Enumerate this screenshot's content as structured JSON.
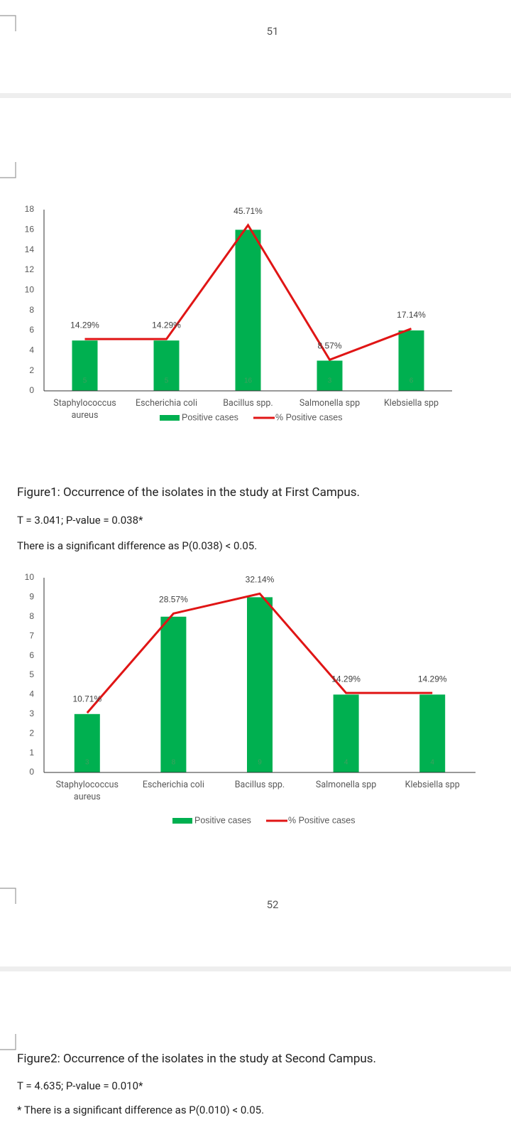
{
  "page_numbers": [
    "51",
    "52"
  ],
  "chart_data": [
    {
      "type": "bar",
      "categories": [
        "Staphylococcus aureus",
        "Escherichia coli",
        "Bacillus spp.",
        "Salmonella spp",
        "Klebsiella spp"
      ],
      "series": [
        {
          "name": "Positive cases",
          "color": "#00b050",
          "values": [
            5,
            5,
            16,
            3,
            6
          ]
        },
        {
          "name": "% Positive cases",
          "color": "#e01515",
          "type": "line",
          "axis": "y2",
          "values": [
            14.29,
            14.29,
            45.71,
            8.57,
            17.14
          ],
          "value_labels": [
            "14.29%",
            "14.29%",
            "45.71%",
            "8.57%",
            "17.14%"
          ]
        }
      ],
      "ylim": [
        0,
        18
      ],
      "yticks": [
        0,
        2,
        4,
        6,
        8,
        10,
        12,
        14,
        16,
        18
      ],
      "y2lim": [
        0,
        50
      ],
      "grid": false,
      "legend": "bottom"
    },
    {
      "type": "bar",
      "categories": [
        "Staphylococcus aureus",
        "Escherichia coli",
        "Bacillus spp.",
        "Salmonella spp",
        "Klebsiella spp"
      ],
      "series": [
        {
          "name": "Positive cases",
          "color": "#00b050",
          "values": [
            3,
            8,
            9,
            4,
            4
          ]
        },
        {
          "name": "% Positive cases",
          "color": "#e01515",
          "type": "line",
          "axis": "y2",
          "values": [
            10.71,
            28.57,
            32.14,
            14.29,
            14.29
          ],
          "value_labels": [
            "10.71%",
            "28.57%",
            "32.14%",
            "14.29%",
            "14.29%"
          ]
        }
      ],
      "ylim": [
        0,
        10
      ],
      "yticks": [
        0,
        1,
        2,
        3,
        4,
        5,
        6,
        7,
        8,
        9,
        10
      ],
      "y2lim": [
        0,
        35
      ],
      "grid": false,
      "legend": "bottom"
    }
  ],
  "captions": [
    {
      "title": "Figure1: Occurrence of the isolates in the study at First Campus.",
      "stat": "T = 3.041; P-value = 0.038*",
      "note": "There is a significant difference as P(0.038) < 0.05."
    },
    {
      "title": "Figure2: Occurrence of the isolates in the study at Second Campus.",
      "stat": "T = 4.635; P-value = 0.010*",
      "note": "* There is a significant difference as P(0.010) < 0.05."
    }
  ]
}
